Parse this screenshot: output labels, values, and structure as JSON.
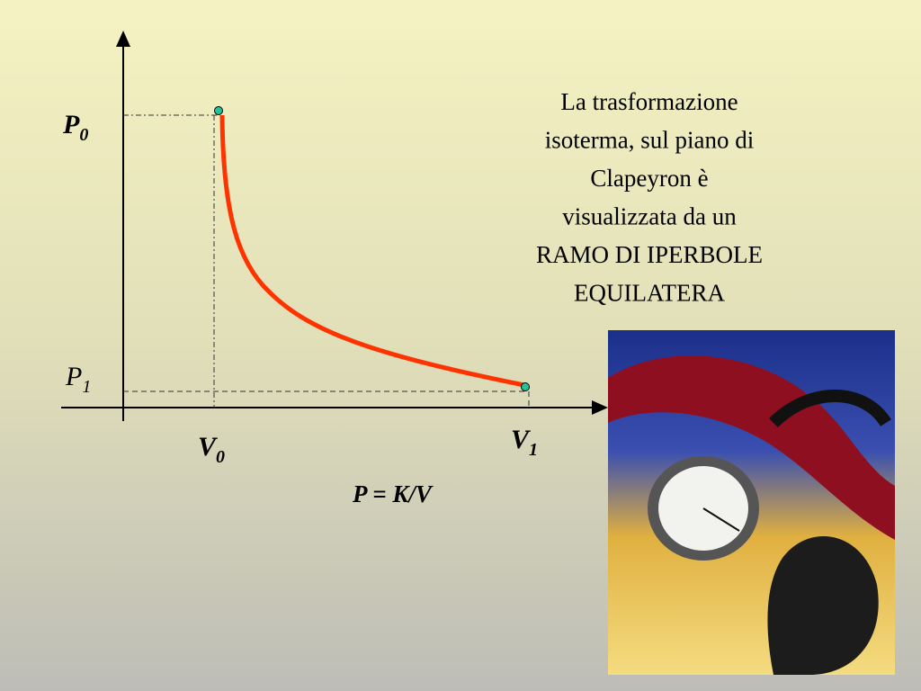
{
  "labels": {
    "p0": {
      "letter": "P",
      "sub": "0"
    },
    "p1": {
      "letter": "P",
      "sub": "1"
    },
    "v0": {
      "letter": "V",
      "sub": "0"
    },
    "v1": {
      "letter": "V",
      "sub": "1"
    }
  },
  "formula": "P = K/V",
  "description": [
    "La trasformazione",
    "isoterma, sul piano di",
    "Clapeyron è",
    "visualizzata da un",
    "RAMO DI IPERBOLE",
    "EQUILATERA"
  ]
}
